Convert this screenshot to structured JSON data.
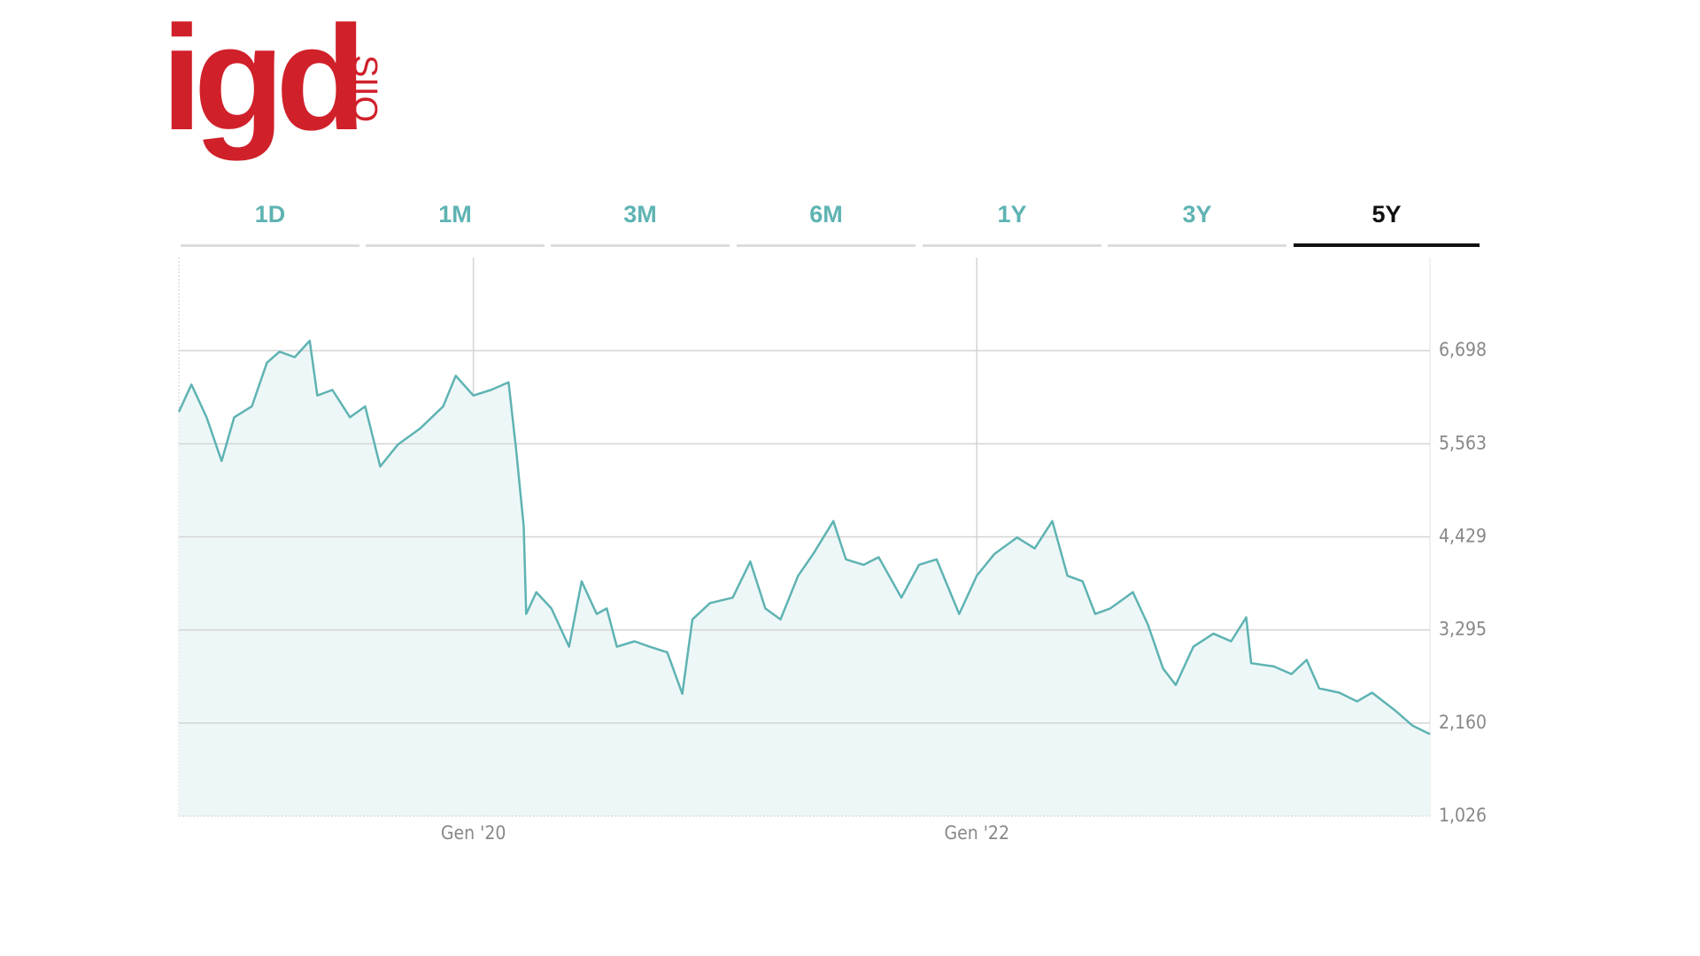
{
  "logo": {
    "name": "igd",
    "tag": "SIIQ"
  },
  "tabs": [
    "1D",
    "1M",
    "3M",
    "6M",
    "1Y",
    "3Y",
    "5Y"
  ],
  "active_tab": 6,
  "chart_data": {
    "type": "line",
    "x": [
      2018.83,
      2018.88,
      2018.94,
      2019.0,
      2019.05,
      2019.12,
      2019.18,
      2019.23,
      2019.29,
      2019.35,
      2019.38,
      2019.44,
      2019.51,
      2019.57,
      2019.63,
      2019.7,
      2019.79,
      2019.88,
      2019.93,
      2020.0,
      2020.07,
      2020.14,
      2020.17,
      2020.2,
      2020.21,
      2020.25,
      2020.31,
      2020.38,
      2020.43,
      2020.49,
      2020.53,
      2020.57,
      2020.64,
      2020.7,
      2020.77,
      2020.83,
      2020.87,
      2020.94,
      2021.03,
      2021.1,
      2021.16,
      2021.22,
      2021.29,
      2021.35,
      2021.43,
      2021.48,
      2021.55,
      2021.61,
      2021.7,
      2021.77,
      2021.84,
      2021.93,
      2022.0,
      2022.07,
      2022.16,
      2022.23,
      2022.3,
      2022.36,
      2022.42,
      2022.47,
      2022.53,
      2022.62,
      2022.68,
      2022.74,
      2022.79,
      2022.86,
      2022.94,
      2023.01,
      2023.07,
      2023.09,
      2023.18,
      2023.25,
      2023.31,
      2023.36,
      2023.44,
      2023.51,
      2023.57,
      2023.66,
      2023.73,
      2023.8
    ],
    "series": [
      {
        "color": "#5fb3b3",
        "fill": "#eef7f7",
        "values": [
          5952,
          6285,
          5886,
          5353,
          5886,
          6019,
          6552,
          6685,
          6619,
          6818,
          6152,
          6219,
          5886,
          6019,
          5287,
          5553,
          5753,
          6019,
          6392,
          6152,
          6219,
          6312,
          5486,
          4554,
          3489,
          3755,
          3556,
          3090,
          3888,
          3489,
          3556,
          3090,
          3156,
          3090,
          3023,
          2517,
          3423,
          3622,
          3688,
          4128,
          3556,
          3423,
          3955,
          4222,
          4621,
          4155,
          4088,
          4181,
          3688,
          4088,
          4155,
          3489,
          3955,
          4222,
          4421,
          4288,
          4621,
          3955,
          3888,
          3489,
          3556,
          3755,
          3356,
          2824,
          2624,
          3090,
          3250,
          3156,
          3449,
          2890,
          2850,
          2757,
          2930,
          2584,
          2531,
          2424,
          2531,
          2318,
          2131,
          2025
        ]
      }
    ],
    "xlim": [
      2018.83,
      2023.8
    ],
    "xticks": [
      {
        "value": 2020,
        "label": "Gen '20"
      },
      {
        "value": 2022,
        "label": "Gen '22"
      }
    ],
    "ylim": [
      1026,
      7832
    ],
    "yticks": [
      {
        "value": 1026,
        "label": "1,026"
      },
      {
        "value": 2160,
        "label": "2,160"
      },
      {
        "value": 3295,
        "label": "3,295"
      },
      {
        "value": 4429,
        "label": "4,429"
      },
      {
        "value": 5563,
        "label": "5,563"
      },
      {
        "value": 6698,
        "label": "6,698"
      }
    ],
    "grid": true
  }
}
